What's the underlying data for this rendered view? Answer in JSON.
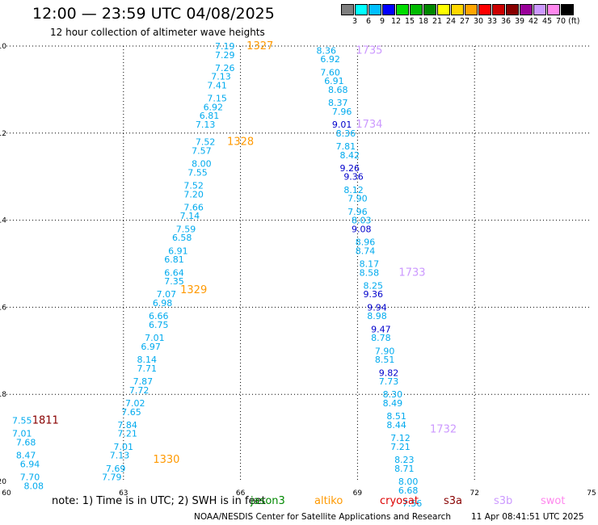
{
  "header": {
    "title": "12:00 — 23:59 UTC 04/08/2025",
    "subtitle": "12 hour collection of altimeter wave heights"
  },
  "legend": {
    "colors": [
      "#7f7f7f",
      "#00ffff",
      "#00bfff",
      "#0000ff",
      "#00dd00",
      "#00bb00",
      "#008800",
      "#ffff00",
      "#ffd700",
      "#ffa500",
      "#ff0000",
      "#cc0000",
      "#880000",
      "#990099",
      "#cc99ff",
      "#ff88ee",
      "#000000"
    ],
    "labels": [
      "3",
      "6",
      "9",
      "12",
      "15",
      "18",
      "21",
      "24",
      "27",
      "30",
      "33",
      "36",
      "39",
      "42",
      "45",
      "70 (ft)"
    ]
  },
  "chart_data": {
    "type": "scatter",
    "xlim": [
      60,
      75
    ],
    "ylim": [
      -20,
      -10
    ],
    "xticks": [
      "60",
      "63",
      "66",
      "69",
      "72",
      "75"
    ],
    "yticks": [
      "-10",
      "-12",
      "-14",
      "-16",
      "-18",
      "-20"
    ],
    "grid": true,
    "tracks": [
      {
        "color": "#00aaee",
        "label_color": "#ff9900",
        "times": [
          {
            "text": "1327",
            "lon": 66.5,
            "lat": -10.0
          },
          {
            "text": "1328",
            "lon": 66.0,
            "lat": -12.2
          },
          {
            "text": "1329",
            "lon": 64.8,
            "lat": -15.6
          },
          {
            "text": "1330",
            "lon": 64.1,
            "lat": -19.5
          }
        ],
        "points": [
          {
            "lon": 65.6,
            "lat": -10.0,
            "v": "7.19"
          },
          {
            "lon": 65.6,
            "lat": -10.2,
            "v": "7.29"
          },
          {
            "lon": 65.6,
            "lat": -10.5,
            "v": "7.26"
          },
          {
            "lon": 65.5,
            "lat": -10.7,
            "v": "7.13"
          },
          {
            "lon": 65.4,
            "lat": -10.9,
            "v": "7.41"
          },
          {
            "lon": 65.4,
            "lat": -11.2,
            "v": "7.15"
          },
          {
            "lon": 65.3,
            "lat": -11.4,
            "v": "6.92"
          },
          {
            "lon": 65.2,
            "lat": -11.6,
            "v": "6.81"
          },
          {
            "lon": 65.1,
            "lat": -11.8,
            "v": "7.13"
          },
          {
            "lon": 65.1,
            "lat": -12.2,
            "v": "7.52"
          },
          {
            "lon": 65.0,
            "lat": -12.4,
            "v": "7.57"
          },
          {
            "lon": 65.0,
            "lat": -12.7,
            "v": "8.00"
          },
          {
            "lon": 64.9,
            "lat": -12.9,
            "v": "7.55"
          },
          {
            "lon": 64.8,
            "lat": -13.2,
            "v": "7.52"
          },
          {
            "lon": 64.8,
            "lat": -13.4,
            "v": "7.20"
          },
          {
            "lon": 64.8,
            "lat": -13.7,
            "v": "7.66"
          },
          {
            "lon": 64.7,
            "lat": -13.9,
            "v": "7.14"
          },
          {
            "lon": 64.6,
            "lat": -14.2,
            "v": "7.59"
          },
          {
            "lon": 64.5,
            "lat": -14.4,
            "v": "6.58"
          },
          {
            "lon": 64.4,
            "lat": -14.7,
            "v": "6.91"
          },
          {
            "lon": 64.3,
            "lat": -14.9,
            "v": "6.81"
          },
          {
            "lon": 64.3,
            "lat": -15.2,
            "v": "6.64"
          },
          {
            "lon": 64.3,
            "lat": -15.4,
            "v": "7.35"
          },
          {
            "lon": 64.1,
            "lat": -15.7,
            "v": "7.07"
          },
          {
            "lon": 64.0,
            "lat": -15.9,
            "v": "6.98"
          },
          {
            "lon": 63.9,
            "lat": -16.2,
            "v": "6.66"
          },
          {
            "lon": 63.9,
            "lat": -16.4,
            "v": "6.75"
          },
          {
            "lon": 63.8,
            "lat": -16.7,
            "v": "7.01"
          },
          {
            "lon": 63.7,
            "lat": -16.9,
            "v": "6.97"
          },
          {
            "lon": 63.6,
            "lat": -17.2,
            "v": "8.14"
          },
          {
            "lon": 63.6,
            "lat": -17.4,
            "v": "7.71"
          },
          {
            "lon": 63.5,
            "lat": -17.7,
            "v": "7.87"
          },
          {
            "lon": 63.4,
            "lat": -17.9,
            "v": "7.72"
          },
          {
            "lon": 63.3,
            "lat": -18.2,
            "v": "7.02"
          },
          {
            "lon": 63.2,
            "lat": -18.4,
            "v": "7.65"
          },
          {
            "lon": 63.1,
            "lat": -18.7,
            "v": "7.84"
          },
          {
            "lon": 63.1,
            "lat": -18.9,
            "v": "7.21"
          },
          {
            "lon": 63.0,
            "lat": -19.2,
            "v": "7.01"
          },
          {
            "lon": 62.9,
            "lat": -19.4,
            "v": "7.13"
          },
          {
            "lon": 62.8,
            "lat": -19.7,
            "v": "7.69"
          },
          {
            "lon": 62.7,
            "lat": -19.9,
            "v": "7.79"
          }
        ]
      },
      {
        "color": "#00aaee",
        "label_color": "#cc99ff",
        "times": [
          {
            "text": "1735",
            "lon": 69.3,
            "lat": -10.1
          },
          {
            "text": "1734",
            "lon": 69.3,
            "lat": -11.8
          },
          {
            "text": "1733",
            "lon": 70.4,
            "lat": -15.2
          },
          {
            "text": "1732",
            "lon": 71.2,
            "lat": -18.8
          }
        ],
        "points": [
          {
            "lon": 68.2,
            "lat": -10.1,
            "v": "8.36"
          },
          {
            "lon": 68.3,
            "lat": -10.3,
            "v": "6.92"
          },
          {
            "lon": 68.3,
            "lat": -10.6,
            "v": "7.60"
          },
          {
            "lon": 68.4,
            "lat": -10.8,
            "v": "6.91"
          },
          {
            "lon": 68.5,
            "lat": -11.0,
            "v": "8.68"
          },
          {
            "lon": 68.5,
            "lat": -11.3,
            "v": "8.37"
          },
          {
            "lon": 68.6,
            "lat": -11.5,
            "v": "7.96"
          },
          {
            "lon": 68.6,
            "lat": -11.8,
            "v": "9.01",
            "c": "#0000cc"
          },
          {
            "lon": 68.7,
            "lat": -12.0,
            "v": "8.36"
          },
          {
            "lon": 68.7,
            "lat": -12.3,
            "v": "7.81"
          },
          {
            "lon": 68.8,
            "lat": -12.5,
            "v": "8.42"
          },
          {
            "lon": 68.8,
            "lat": -12.8,
            "v": "9.26",
            "c": "#0000cc"
          },
          {
            "lon": 68.9,
            "lat": -13.0,
            "v": "9.36",
            "c": "#0000cc"
          },
          {
            "lon": 68.9,
            "lat": -13.3,
            "v": "8.12"
          },
          {
            "lon": 69.0,
            "lat": -13.5,
            "v": "7.90"
          },
          {
            "lon": 69.0,
            "lat": -13.8,
            "v": "7.96"
          },
          {
            "lon": 69.1,
            "lat": -14.0,
            "v": "8.03"
          },
          {
            "lon": 69.1,
            "lat": -14.2,
            "v": "9.08",
            "c": "#0000cc"
          },
          {
            "lon": 69.2,
            "lat": -14.5,
            "v": "8.96"
          },
          {
            "lon": 69.2,
            "lat": -14.7,
            "v": "8.74"
          },
          {
            "lon": 69.3,
            "lat": -15.0,
            "v": "8.17"
          },
          {
            "lon": 69.3,
            "lat": -15.2,
            "v": "8.58"
          },
          {
            "lon": 69.4,
            "lat": -15.5,
            "v": "8.25"
          },
          {
            "lon": 69.4,
            "lat": -15.7,
            "v": "9.36",
            "c": "#0000cc"
          },
          {
            "lon": 69.5,
            "lat": -16.0,
            "v": "9.94",
            "c": "#0000cc"
          },
          {
            "lon": 69.5,
            "lat": -16.2,
            "v": "8.98"
          },
          {
            "lon": 69.6,
            "lat": -16.5,
            "v": "9.47",
            "c": "#0000cc"
          },
          {
            "lon": 69.6,
            "lat": -16.7,
            "v": "8.78"
          },
          {
            "lon": 69.7,
            "lat": -17.0,
            "v": "7.90"
          },
          {
            "lon": 69.7,
            "lat": -17.2,
            "v": "8.51"
          },
          {
            "lon": 69.8,
            "lat": -17.5,
            "v": "9.82",
            "c": "#0000cc"
          },
          {
            "lon": 69.8,
            "lat": -17.7,
            "v": "7.73"
          },
          {
            "lon": 69.9,
            "lat": -18.0,
            "v": "8.30"
          },
          {
            "lon": 69.9,
            "lat": -18.2,
            "v": "8.49"
          },
          {
            "lon": 70.0,
            "lat": -18.5,
            "v": "8.51"
          },
          {
            "lon": 70.0,
            "lat": -18.7,
            "v": "8.44"
          },
          {
            "lon": 70.1,
            "lat": -19.0,
            "v": "7.12"
          },
          {
            "lon": 70.1,
            "lat": -19.2,
            "v": "7.21"
          },
          {
            "lon": 70.2,
            "lat": -19.5,
            "v": "8.23"
          },
          {
            "lon": 70.2,
            "lat": -19.7,
            "v": "8.71"
          },
          {
            "lon": 70.3,
            "lat": -20.0,
            "v": "8.00"
          },
          {
            "lon": 70.3,
            "lat": -20.2,
            "v": "6.68"
          },
          {
            "lon": 70.4,
            "lat": -20.5,
            "v": "7.56"
          }
        ]
      },
      {
        "color": "#00aaee",
        "label_color": "#880000",
        "times": [
          {
            "text": "1811",
            "lon": 61.0,
            "lat": -18.6
          }
        ],
        "points": [
          {
            "lon": 60.4,
            "lat": -18.6,
            "v": "7.55"
          },
          {
            "lon": 60.4,
            "lat": -18.9,
            "v": "7.01"
          },
          {
            "lon": 60.5,
            "lat": -19.1,
            "v": "7.68"
          },
          {
            "lon": 60.5,
            "lat": -19.4,
            "v": "8.47"
          },
          {
            "lon": 60.6,
            "lat": -19.6,
            "v": "6.94"
          },
          {
            "lon": 60.6,
            "lat": -19.9,
            "v": "7.70"
          },
          {
            "lon": 60.7,
            "lat": -20.1,
            "v": "8.08"
          }
        ]
      }
    ]
  },
  "footer": {
    "note": "note:  1) Time is in UTC; 2) SWH is in feet",
    "satellites": [
      {
        "name": "jason3",
        "color": "#008800"
      },
      {
        "name": "altiko",
        "color": "#ff9900"
      },
      {
        "name": "cryosat",
        "color": "#dd0000"
      },
      {
        "name": "s3a",
        "color": "#880000"
      },
      {
        "name": "s3b",
        "color": "#cc99ff"
      },
      {
        "name": "swot",
        "color": "#ff88ee"
      }
    ],
    "credit": "NOAA/NESDIS Center for Satellite Applications and Research",
    "timestamp": "11 Apr 08:41:51 UTC 2025"
  }
}
